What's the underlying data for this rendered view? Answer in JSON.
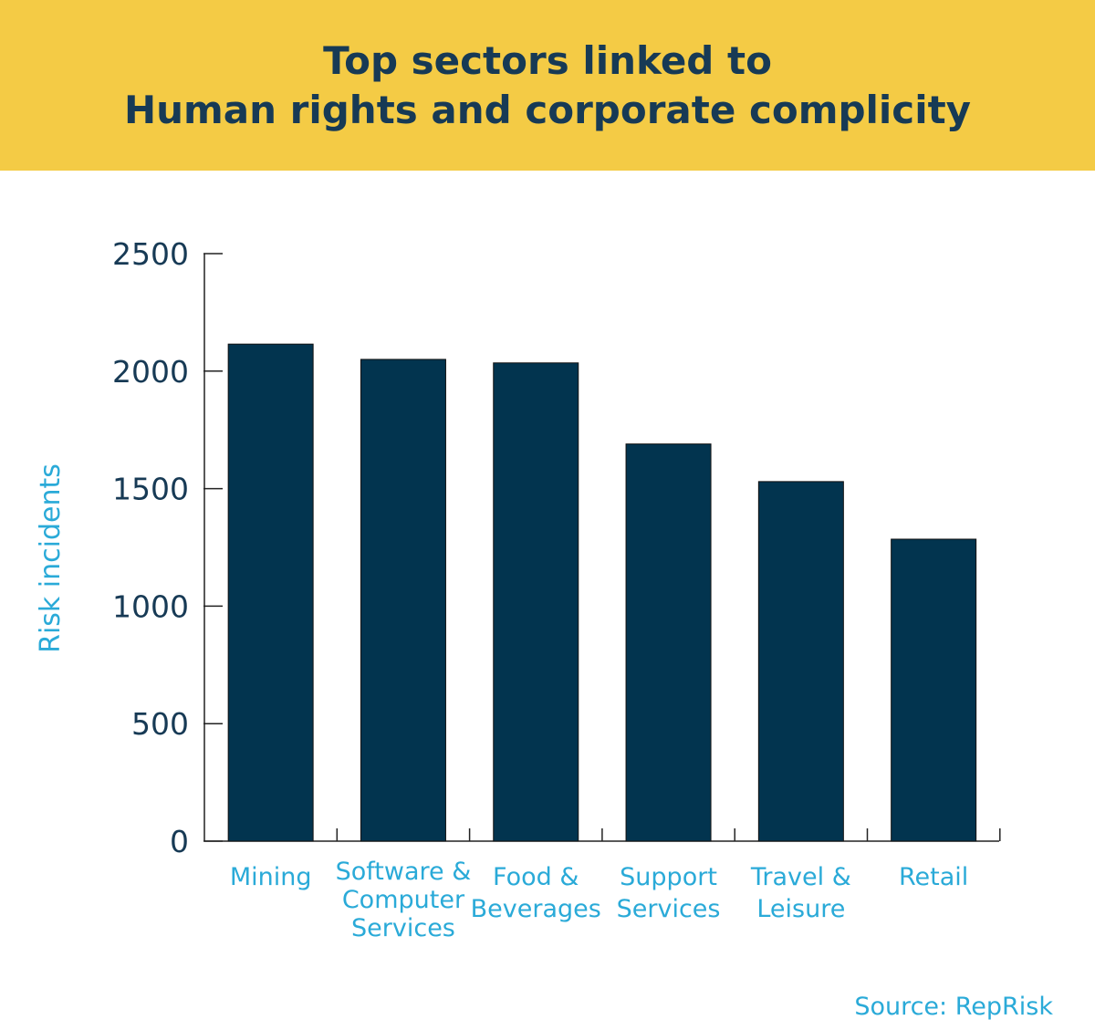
{
  "chart_data": {
    "type": "bar",
    "title": [
      "Top sectors linked to",
      "Human rights and corporate complicity"
    ],
    "ylabel": "Risk incidents",
    "xlabel": "",
    "ylim": [
      0,
      2500
    ],
    "yticks": [
      0,
      500,
      1000,
      1500,
      2000,
      2500
    ],
    "categories": [
      [
        "Mining"
      ],
      [
        "Software &",
        "Computer",
        "Services"
      ],
      [
        "Food &",
        "Beverages"
      ],
      [
        "Support",
        "Services"
      ],
      [
        "Travel &",
        "Leisure"
      ],
      [
        "Retail"
      ]
    ],
    "values": [
      2115,
      2050,
      2035,
      1690,
      1530,
      1285
    ],
    "legend": null
  },
  "source": "Source: RepRisk",
  "colors": {
    "banner": "#f4cb45",
    "title": "#173a55",
    "bar": "#02344f",
    "axis_text": "#173a55",
    "accent": "#2aaad8"
  }
}
